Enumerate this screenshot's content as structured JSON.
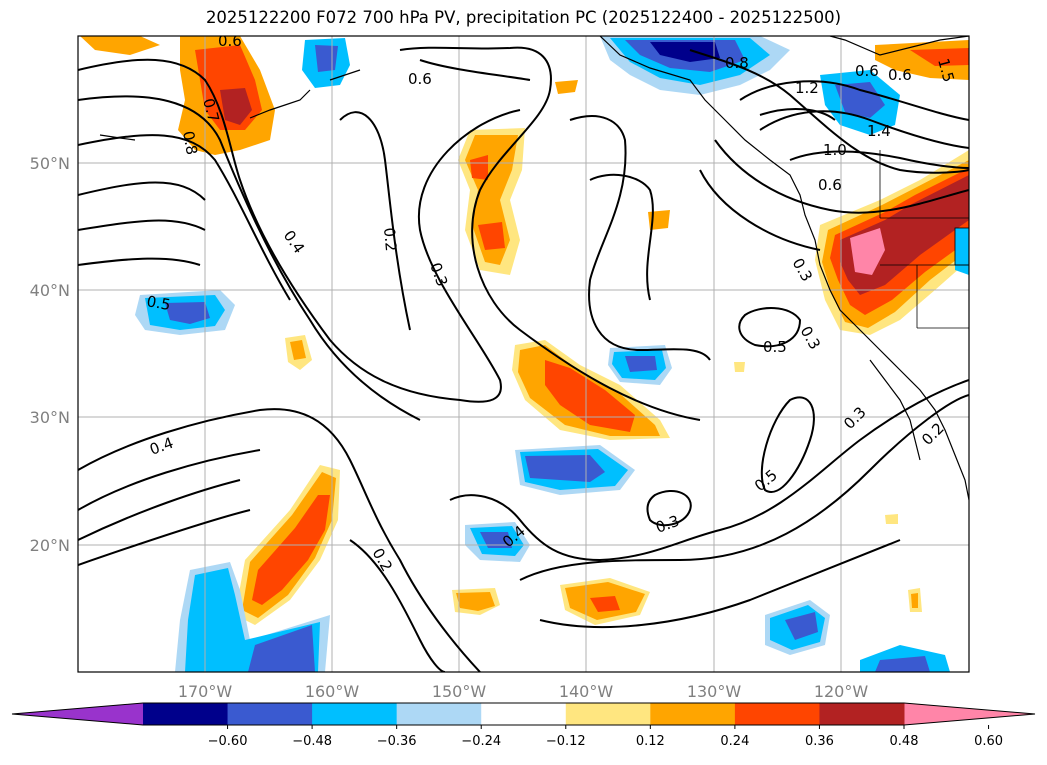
{
  "title": "2025122200 F072 700 hPa PV, precipitation PC (2025122400 - 2025122500)",
  "lon_labels": [
    "170°W",
    "160°W",
    "150°W",
    "140°W",
    "130°W",
    "120°W"
  ],
  "lat_labels": [
    "50°N",
    "40°N",
    "30°N",
    "20°N"
  ],
  "colorbar": {
    "colors": [
      "#9933cc",
      "#00008b",
      "#3a5ad0",
      "#00bfff",
      "#add8f5",
      "#ffffff",
      "#ffe680",
      "#ffa500",
      "#ff4500",
      "#b22222",
      "#ff85a8"
    ],
    "labels": [
      "−0.60",
      "−0.48",
      "−0.36",
      "−0.24",
      "−0.12",
      "0.12",
      "0.24",
      "0.36",
      "0.48",
      "0.60"
    ]
  },
  "contour_labels": [
    "0.6",
    "0.7",
    "0.8",
    "0.6",
    "0.8",
    "0.6",
    "0.6",
    "1.2",
    "1.4",
    "1.0",
    "0.6",
    "0.4",
    "0.2",
    "0.3",
    "0.3",
    "0.5",
    "0.5",
    "0.4",
    "0.4",
    "0.2",
    "0.3",
    "0.3",
    "0.5",
    "0.3",
    "0.2",
    "1.5"
  ]
}
